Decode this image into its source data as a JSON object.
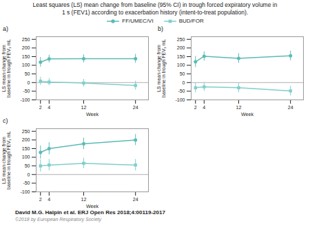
{
  "title": "Least squares (LS) mean change from baseline (95% CI) in trough forced expiratory volume in\n1 s (FEV1) according to exacerbation history (intent-to-treat population).",
  "annotations": [
    "David M.G. Halpin et al. ERJ Open Res 2018;4:00119-2017",
    "©2018 by European Respiratory Society"
  ],
  "chart_data": [
    {
      "type": "line",
      "title": "a)",
      "legend": "top",
      "xlabel": "Week",
      "ylabel": "LS mean change from\nbaseline in trough FEV₁ mL",
      "x": [
        2,
        4,
        12,
        24
      ],
      "xlim": [
        1,
        27
      ],
      "xticks": [
        2,
        4,
        12,
        24
      ],
      "ylim": [
        -100,
        265
      ],
      "yticks": [
        -100,
        -50,
        0,
        50,
        100,
        150,
        200,
        250
      ],
      "series": [
        {
          "name": "FF/UMEC/VI",
          "color": "#5bbab6",
          "marker": "circle",
          "values": [
            118,
            137,
            138,
            138
          ],
          "ci_low": [
            90,
            115,
            115,
            112
          ],
          "ci_high": [
            146,
            159,
            161,
            164
          ]
        },
        {
          "name": "BUD/FOR",
          "color": "#7fcfcc",
          "marker": "square",
          "values": [
            8,
            3,
            -3,
            -17
          ],
          "ci_low": [
            -15,
            -18,
            -25,
            -43
          ],
          "ci_high": [
            31,
            24,
            19,
            9
          ]
        }
      ]
    },
    {
      "type": "line",
      "title": "b)",
      "xlabel": "Week",
      "ylabel": "LS mean change from\nbaseline in trough FEV₁ mL",
      "x": [
        2,
        4,
        12,
        24
      ],
      "xlim": [
        1,
        27
      ],
      "xticks": [
        2,
        4,
        12,
        24
      ],
      "ylim": [
        -100,
        265
      ],
      "yticks": [
        -100,
        -50,
        0,
        50,
        100,
        150,
        200,
        250
      ],
      "series": [
        {
          "name": "FF/UMEC/VI",
          "color": "#5bbab6",
          "marker": "circle",
          "values": [
            120,
            152,
            140,
            155
          ],
          "ci_low": [
            88,
            125,
            112,
            127
          ],
          "ci_high": [
            152,
            179,
            168,
            183
          ]
        },
        {
          "name": "BUD/FOR",
          "color": "#7fcfcc",
          "marker": "square",
          "values": [
            -30,
            -25,
            -30,
            -48
          ],
          "ci_low": [
            -58,
            -50,
            -57,
            -76
          ],
          "ci_high": [
            -2,
            0,
            -3,
            -20
          ]
        }
      ]
    },
    {
      "type": "line",
      "title": "c)",
      "xlabel": "Week",
      "ylabel": "LS mean change from\nbaseline in trough FEV₁ mL",
      "x": [
        2,
        4,
        12,
        24
      ],
      "xlim": [
        1,
        27
      ],
      "xticks": [
        2,
        4,
        12,
        24
      ],
      "ylim": [
        -100,
        265
      ],
      "yticks": [
        -100,
        -50,
        0,
        50,
        100,
        150,
        200,
        250
      ],
      "series": [
        {
          "name": "FF/UMEC/VI",
          "color": "#5bbab6",
          "marker": "circle",
          "values": [
            128,
            150,
            178,
            200
          ],
          "ci_low": [
            90,
            115,
            145,
            168
          ],
          "ci_high": [
            166,
            185,
            211,
            232
          ]
        },
        {
          "name": "BUD/FOR",
          "color": "#7fcfcc",
          "marker": "square",
          "values": [
            50,
            55,
            65,
            55
          ],
          "ci_low": [
            15,
            22,
            35,
            22
          ],
          "ci_high": [
            85,
            88,
            95,
            88
          ]
        }
      ]
    }
  ]
}
